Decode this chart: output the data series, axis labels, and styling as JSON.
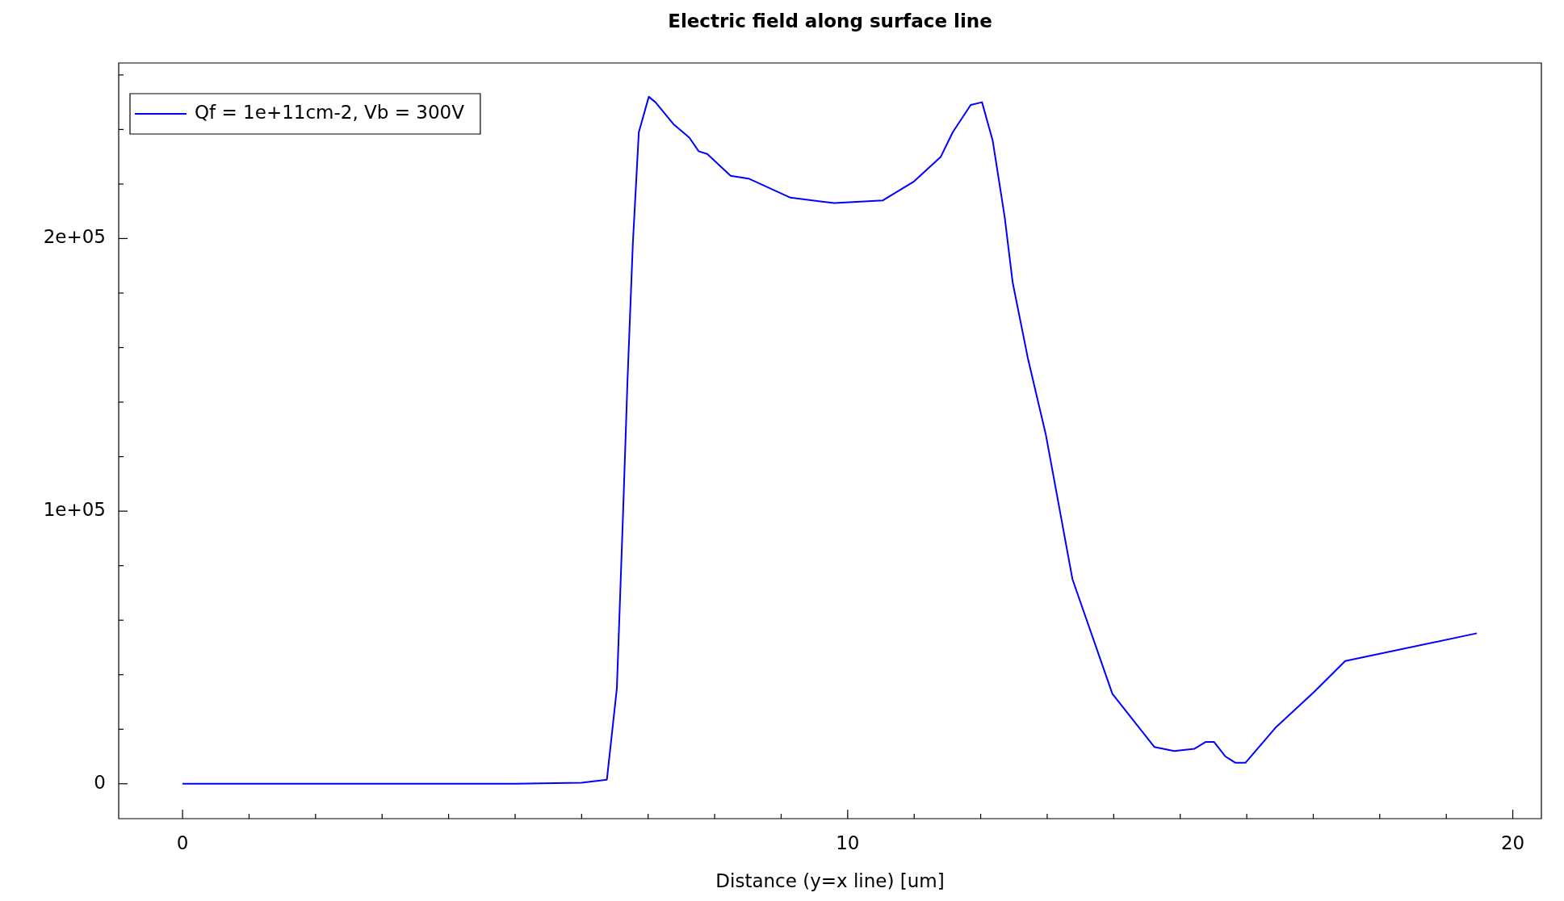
{
  "chart_data": {
    "type": "line",
    "title": "Electric field along surface line",
    "xlabel": "Distance (y=x line) [um]",
    "xlim": [
      -0.96,
      20.43
    ],
    "ylim": [
      -12800,
      264400
    ],
    "xticks": [
      0,
      {
        "value": 1,
        "label": null
      },
      {
        "value": 2,
        "label": null
      },
      {
        "value": 3,
        "label": null
      },
      {
        "value": 4,
        "label": null
      },
      {
        "value": 5,
        "label": null
      },
      {
        "value": 6,
        "label": null
      },
      {
        "value": 7,
        "label": null
      },
      {
        "value": 8,
        "label": null
      },
      {
        "value": 9,
        "label": null
      },
      10,
      {
        "value": 11,
        "label": null
      },
      {
        "value": 12,
        "label": null
      },
      {
        "value": 13,
        "label": null
      },
      {
        "value": 14,
        "label": null
      },
      {
        "value": 15,
        "label": null
      },
      {
        "value": 16,
        "label": null
      },
      {
        "value": 17,
        "label": null
      },
      {
        "value": 18,
        "label": null
      },
      {
        "value": 19,
        "label": null
      },
      20
    ],
    "yticks": [
      {
        "value": 0,
        "label": "0"
      },
      {
        "value": 20000,
        "label": null
      },
      {
        "value": 40000,
        "label": null
      },
      {
        "value": 60000,
        "label": null
      },
      {
        "value": 80000,
        "label": null
      },
      {
        "value": 100000,
        "label": "1e+05"
      },
      {
        "value": 120000,
        "label": null
      },
      {
        "value": 140000,
        "label": null
      },
      {
        "value": 160000,
        "label": null
      },
      {
        "value": 180000,
        "label": null
      },
      {
        "value": 200000,
        "label": "2e+05"
      },
      {
        "value": 220000,
        "label": null
      },
      {
        "value": 240000,
        "label": null
      },
      {
        "value": 260000,
        "label": null
      }
    ],
    "grid": false,
    "legend": "top left",
    "marker": "none",
    "line_style": "solid",
    "series": [
      {
        "name": "Qf = 1e+11cm-2, Vb = 300V",
        "color": "#0000ff",
        "x": [
          0,
          5.01,
          6.0,
          6.38,
          6.53,
          6.62,
          6.69,
          6.77,
          6.86,
          7.01,
          7.11,
          7.38,
          7.62,
          7.76,
          7.89,
          8.24,
          8.51,
          9.14,
          9.8,
          10.53,
          11.0,
          11.4,
          11.58,
          11.85,
          12.02,
          12.18,
          12.36,
          12.48,
          12.71,
          12.98,
          13.38,
          13.98,
          14.61,
          14.91,
          15.21,
          15.38,
          15.51,
          15.68,
          15.83,
          15.98,
          16.43,
          17.01,
          17.48,
          19.46
        ],
        "values": [
          0,
          0,
          400,
          1500,
          35000,
          97000,
          148000,
          198000,
          239000,
          252000,
          250000,
          242000,
          237000,
          232000,
          231000,
          223000,
          222000,
          215000,
          213000,
          214000,
          221000,
          230000,
          239000,
          249000,
          250000,
          236000,
          208000,
          184000,
          156000,
          128000,
          75000,
          33000,
          13500,
          12000,
          12800,
          15300,
          15300,
          10000,
          7700,
          7700,
          20500,
          33600,
          45000,
          55200
        ]
      }
    ]
  }
}
